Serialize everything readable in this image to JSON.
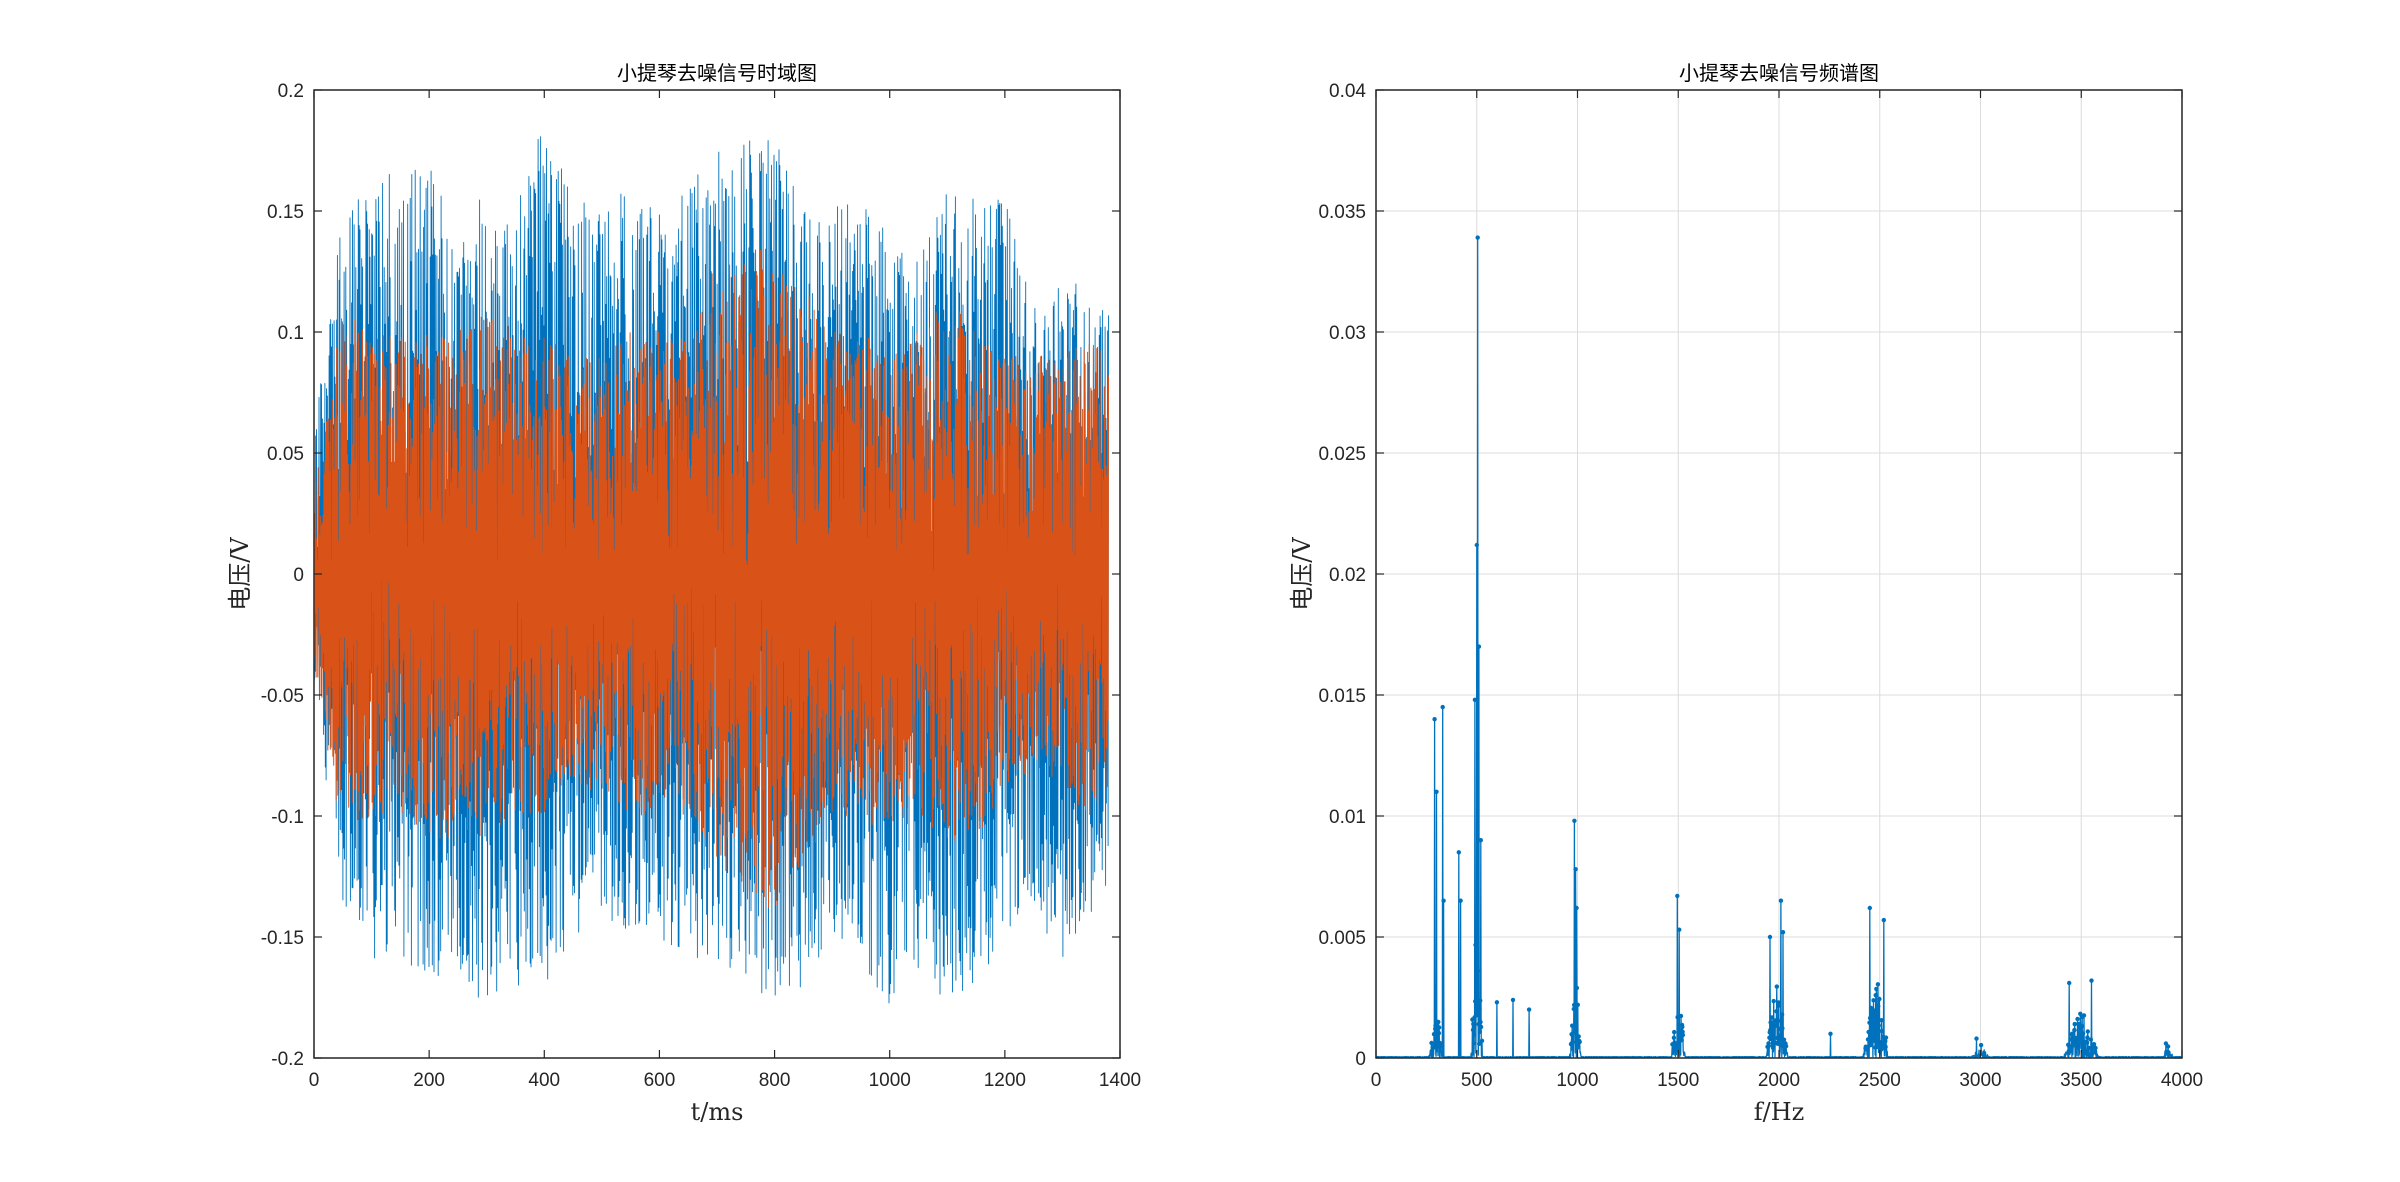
{
  "chart_data": [
    {
      "type": "line",
      "title": "小提琴去噪信号时域图",
      "xlabel": "t/ms",
      "ylabel": "电压/V",
      "xlim": [
        0,
        1400
      ],
      "ylim": [
        -0.2,
        0.2
      ],
      "xticks": [
        0,
        200,
        400,
        600,
        800,
        1000,
        1200,
        1400
      ],
      "xtick_labels": [
        "0",
        "200",
        "400",
        "600",
        "800",
        "1000",
        "1200",
        "1400"
      ],
      "yticks": [
        -0.2,
        -0.15,
        -0.1,
        -0.05,
        0,
        0.05,
        0.1,
        0.15,
        0.2
      ],
      "ytick_labels": [
        "-0.2",
        "-0.15",
        "-0.1",
        "-0.05",
        "0",
        "0.05",
        "0.1",
        "0.15",
        "0.2"
      ],
      "grid": false,
      "series": [
        {
          "color": "#0072BD",
          "envelope": {
            "t": [
              0,
              50,
              100,
              150,
              200,
              250,
              300,
              350,
              400,
              450,
              500,
              550,
              600,
              650,
              700,
              750,
              800,
              850,
              900,
              950,
              1000,
              1050,
              1100,
              1150,
              1200,
              1250,
              1300,
              1350,
              1380
            ],
            "upper": [
              0.06,
              0.15,
              0.16,
              0.17,
              0.17,
              0.14,
              0.16,
              0.15,
              0.19,
              0.16,
              0.15,
              0.17,
              0.15,
              0.16,
              0.18,
              0.18,
              0.18,
              0.15,
              0.15,
              0.16,
              0.14,
              0.13,
              0.16,
              0.16,
              0.16,
              0.11,
              0.12,
              0.12,
              0.11
            ],
            "lower": [
              -0.05,
              -0.14,
              -0.16,
              -0.16,
              -0.17,
              -0.17,
              -0.18,
              -0.17,
              -0.17,
              -0.15,
              -0.14,
              -0.15,
              -0.15,
              -0.16,
              -0.16,
              -0.17,
              -0.18,
              -0.17,
              -0.15,
              -0.16,
              -0.18,
              -0.17,
              -0.18,
              -0.17,
              -0.15,
              -0.14,
              -0.16,
              -0.14,
              -0.14
            ]
          }
        },
        {
          "color": "#D95319",
          "envelope": {
            "t": [
              0,
              50,
              100,
              150,
              200,
              250,
              300,
              350,
              400,
              450,
              500,
              550,
              600,
              650,
              700,
              750,
              800,
              850,
              900,
              950,
              1000,
              1050,
              1100,
              1150,
              1200,
              1250,
              1300,
              1350,
              1380
            ],
            "upper": [
              0.04,
              0.11,
              0.1,
              0.1,
              0.1,
              0.1,
              0.11,
              0.1,
              0.1,
              0.09,
              0.09,
              0.1,
              0.1,
              0.1,
              0.13,
              0.13,
              0.14,
              0.12,
              0.1,
              0.1,
              0.09,
              0.1,
              0.12,
              0.1,
              0.09,
              0.09,
              0.09,
              0.1,
              0.09
            ],
            "lower": [
              -0.04,
              -0.11,
              -0.1,
              -0.1,
              -0.11,
              -0.11,
              -0.11,
              -0.1,
              -0.1,
              -0.09,
              -0.09,
              -0.1,
              -0.1,
              -0.1,
              -0.12,
              -0.13,
              -0.14,
              -0.12,
              -0.1,
              -0.1,
              -0.11,
              -0.1,
              -0.11,
              -0.11,
              -0.09,
              -0.08,
              -0.09,
              -0.1,
              -0.09
            ]
          }
        }
      ]
    },
    {
      "type": "line",
      "title": "小提琴去噪信号频谱图",
      "xlabel": "f/Hz",
      "ylabel": "电压/V",
      "xlim": [
        0,
        4000
      ],
      "ylim": [
        0,
        0.04
      ],
      "xticks": [
        0,
        500,
        1000,
        1500,
        2000,
        2500,
        3000,
        3500,
        4000
      ],
      "xtick_labels": [
        "0",
        "500",
        "1000",
        "1500",
        "2000",
        "2500",
        "3000",
        "3500",
        "4000"
      ],
      "yticks": [
        0,
        0.005,
        0.01,
        0.015,
        0.02,
        0.025,
        0.03,
        0.035,
        0.04
      ],
      "ytick_labels": [
        "0",
        "0.005",
        "0.01",
        "0.015",
        "0.02",
        "0.025",
        "0.03",
        "0.035",
        "0.04"
      ],
      "grid": true,
      "series": [
        {
          "color": "#0072BD",
          "peaks": [
            {
              "f": 290,
              "v": 0.014
            },
            {
              "f": 300,
              "v": 0.011
            },
            {
              "f": 330,
              "v": 0.0145
            },
            {
              "f": 335,
              "v": 0.0065
            },
            {
              "f": 410,
              "v": 0.0085
            },
            {
              "f": 420,
              "v": 0.0065
            },
            {
              "f": 490,
              "v": 0.0148
            },
            {
              "f": 500,
              "v": 0.0212
            },
            {
              "f": 505,
              "v": 0.0339
            },
            {
              "f": 510,
              "v": 0.017
            },
            {
              "f": 520,
              "v": 0.009
            },
            {
              "f": 600,
              "v": 0.0023
            },
            {
              "f": 680,
              "v": 0.0024
            },
            {
              "f": 760,
              "v": 0.002
            },
            {
              "f": 985,
              "v": 0.0098
            },
            {
              "f": 990,
              "v": 0.0078
            },
            {
              "f": 995,
              "v": 0.0062
            },
            {
              "f": 1495,
              "v": 0.0067
            },
            {
              "f": 1505,
              "v": 0.0053
            },
            {
              "f": 1955,
              "v": 0.005
            },
            {
              "f": 2010,
              "v": 0.0065
            },
            {
              "f": 2020,
              "v": 0.0052
            },
            {
              "f": 2255,
              "v": 0.001
            },
            {
              "f": 2450,
              "v": 0.0062
            },
            {
              "f": 2520,
              "v": 0.0057
            },
            {
              "f": 2980,
              "v": 0.0008
            },
            {
              "f": 3440,
              "v": 0.0031
            },
            {
              "f": 3550,
              "v": 0.0032
            },
            {
              "f": 3920,
              "v": 0.0006
            }
          ],
          "clusters": [
            {
              "center": 300,
              "width": 80,
              "height": 0.002
            },
            {
              "center": 500,
              "width": 60,
              "height": 0.006
            },
            {
              "center": 990,
              "width": 60,
              "height": 0.004
            },
            {
              "center": 1500,
              "width": 70,
              "height": 0.0035
            },
            {
              "center": 1990,
              "width": 110,
              "height": 0.0035
            },
            {
              "center": 2480,
              "width": 130,
              "height": 0.004
            },
            {
              "center": 3000,
              "width": 100,
              "height": 0.0006
            },
            {
              "center": 3500,
              "width": 180,
              "height": 0.0022
            },
            {
              "center": 3930,
              "width": 70,
              "height": 0.0005
            }
          ]
        }
      ]
    }
  ]
}
